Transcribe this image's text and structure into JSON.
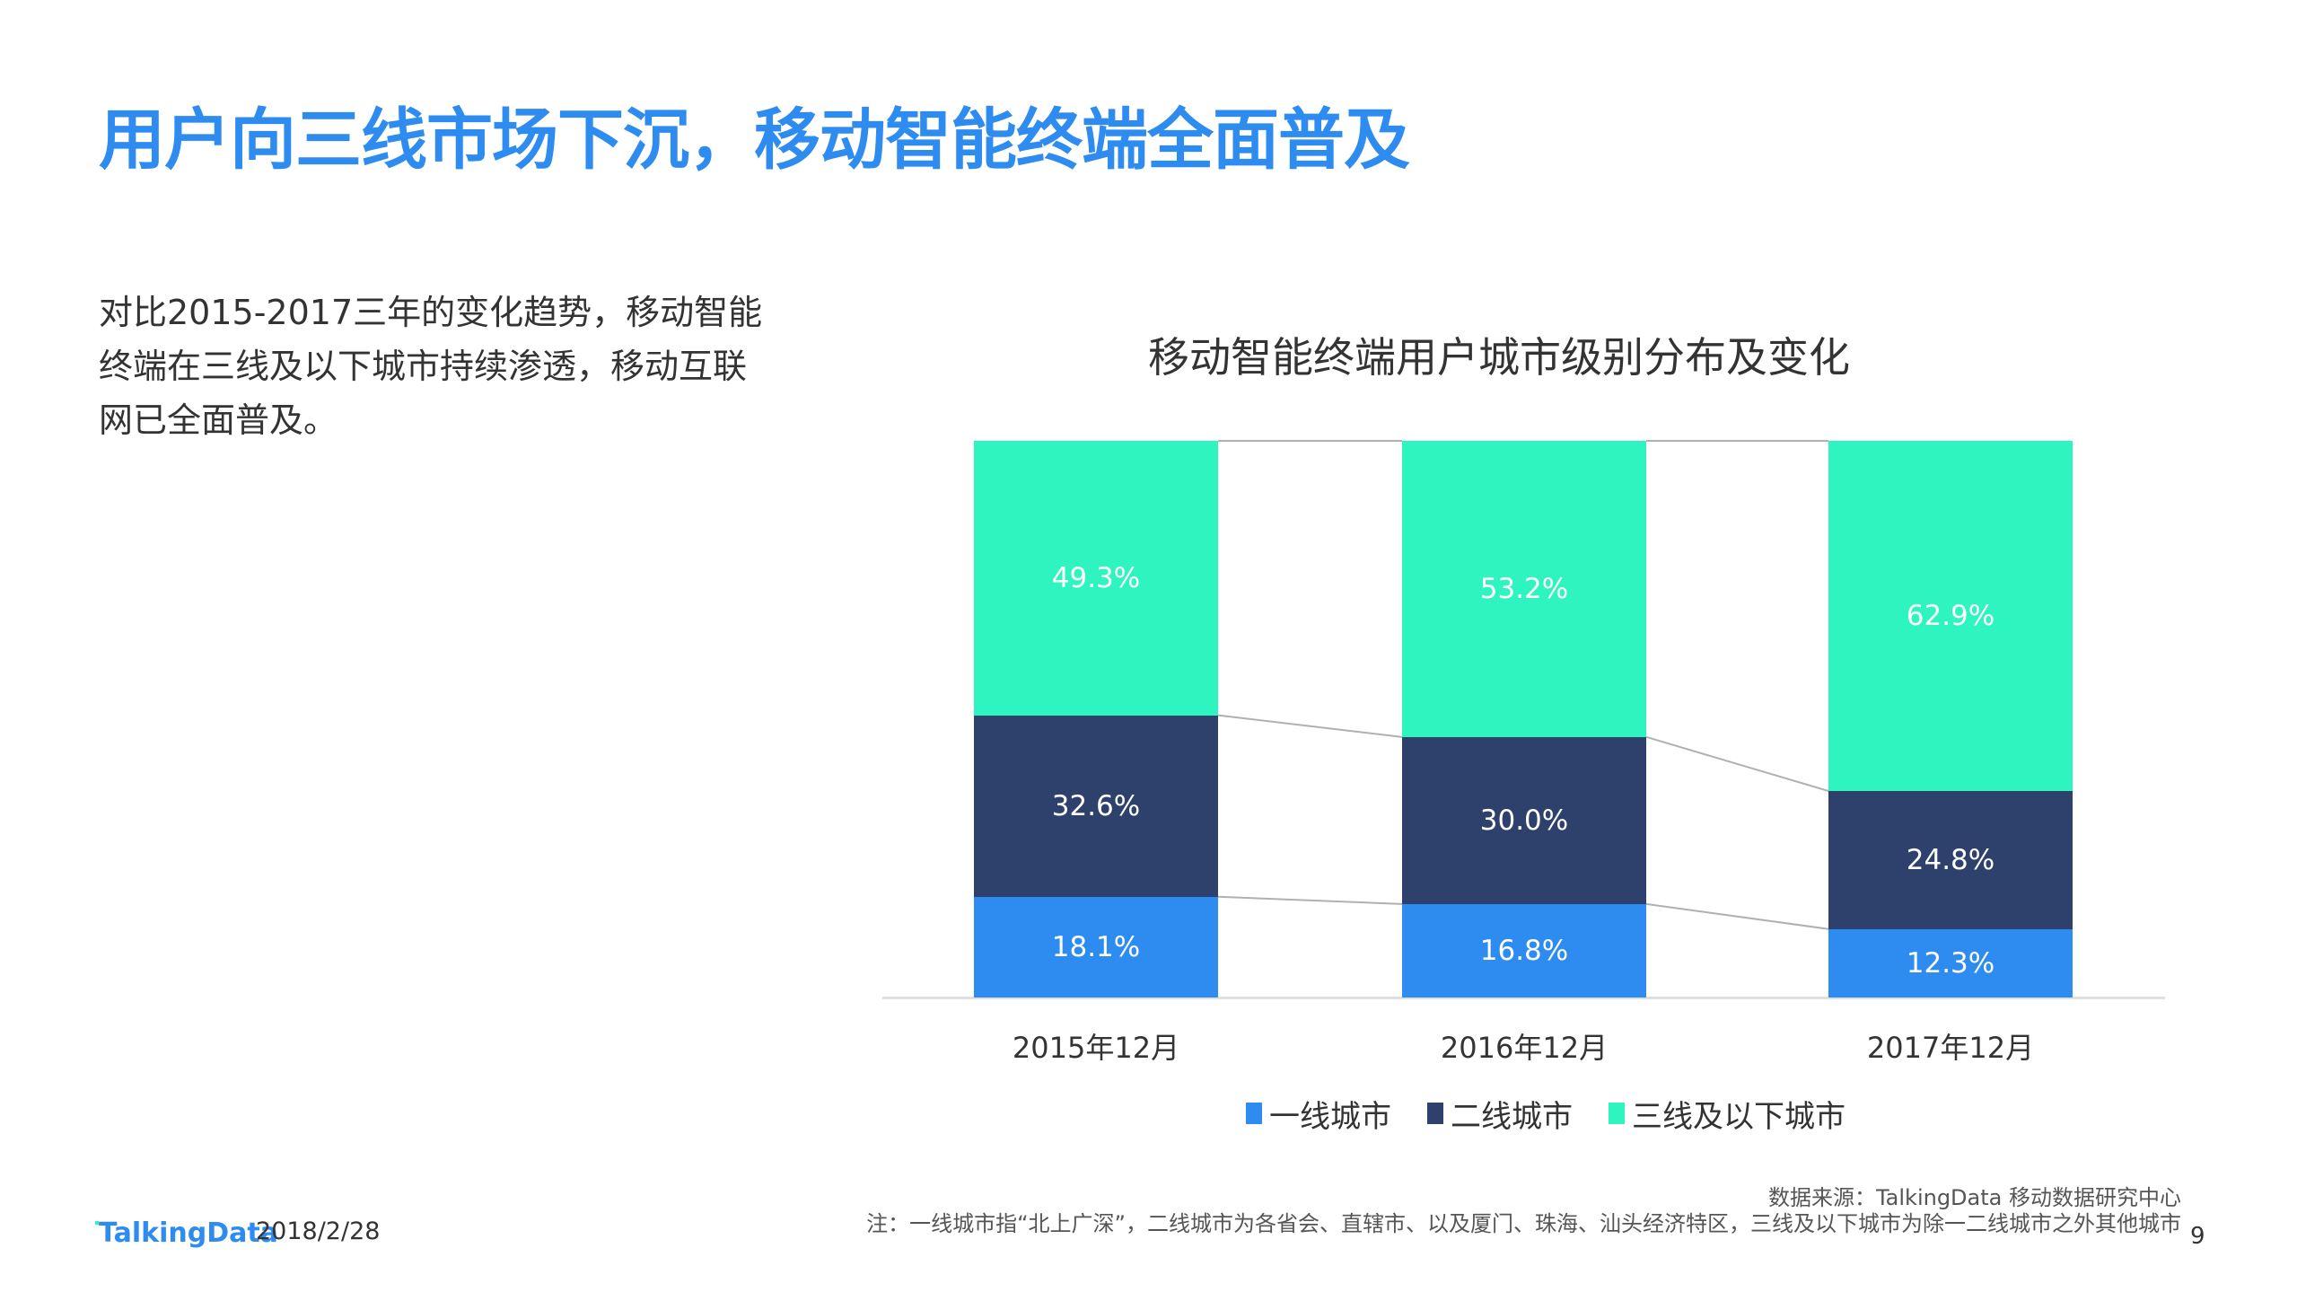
{
  "page": {
    "title": "用户向三线市场下沉，移动智能终端全面普及",
    "body_lines": [
      "对比2015-2017三年的变化趋势，移动智能",
      "终端在三线及以下城市持续渗透，移动互联",
      "网已全面普及。"
    ],
    "footer": {
      "source": "数据来源：TalkingData 移动数据研究中心",
      "note": "注：一线城市指“北上广深”，二线城市为各省会、直辖市、以及厦门、珠海、汕头经济特区，三线及以下城市为除一二线城市之外其他城市",
      "page_number": "9",
      "logo": "TalkingData",
      "date": "2018/2/28"
    }
  },
  "colors": {
    "title_blue": "#2e8cf0",
    "tier1": "#2e8cf0",
    "tier2": "#2e416c",
    "tier3": "#2ef4c0",
    "connector": "#b0b0b0",
    "axis": "#e0e0e0"
  },
  "chart_data": {
    "type": "bar",
    "stacked": true,
    "percent": true,
    "title": "移动智能终端用户城市级别分布及变化",
    "categories": [
      "2015年12月",
      "2016年12月",
      "2017年12月"
    ],
    "series": [
      {
        "name": "一线城市",
        "values": [
          18.1,
          16.8,
          12.3
        ],
        "labels": [
          "18.1%",
          "16.8%",
          "12.3%"
        ],
        "color": "#2e8cf0"
      },
      {
        "name": "二线城市",
        "values": [
          32.6,
          30.0,
          24.8
        ],
        "labels": [
          "32.6%",
          "30.0%",
          "24.8%"
        ],
        "color": "#2e416c"
      },
      {
        "name": "三线及以下城市",
        "values": [
          49.3,
          53.2,
          62.9
        ],
        "labels": [
          "49.3%",
          "53.2%",
          "62.9%"
        ],
        "color": "#2ef4c0"
      }
    ],
    "xlabel": "",
    "ylabel": "",
    "ylim": [
      0,
      100
    ],
    "grid": false,
    "series_lines": true,
    "legend_position": "bottom"
  }
}
